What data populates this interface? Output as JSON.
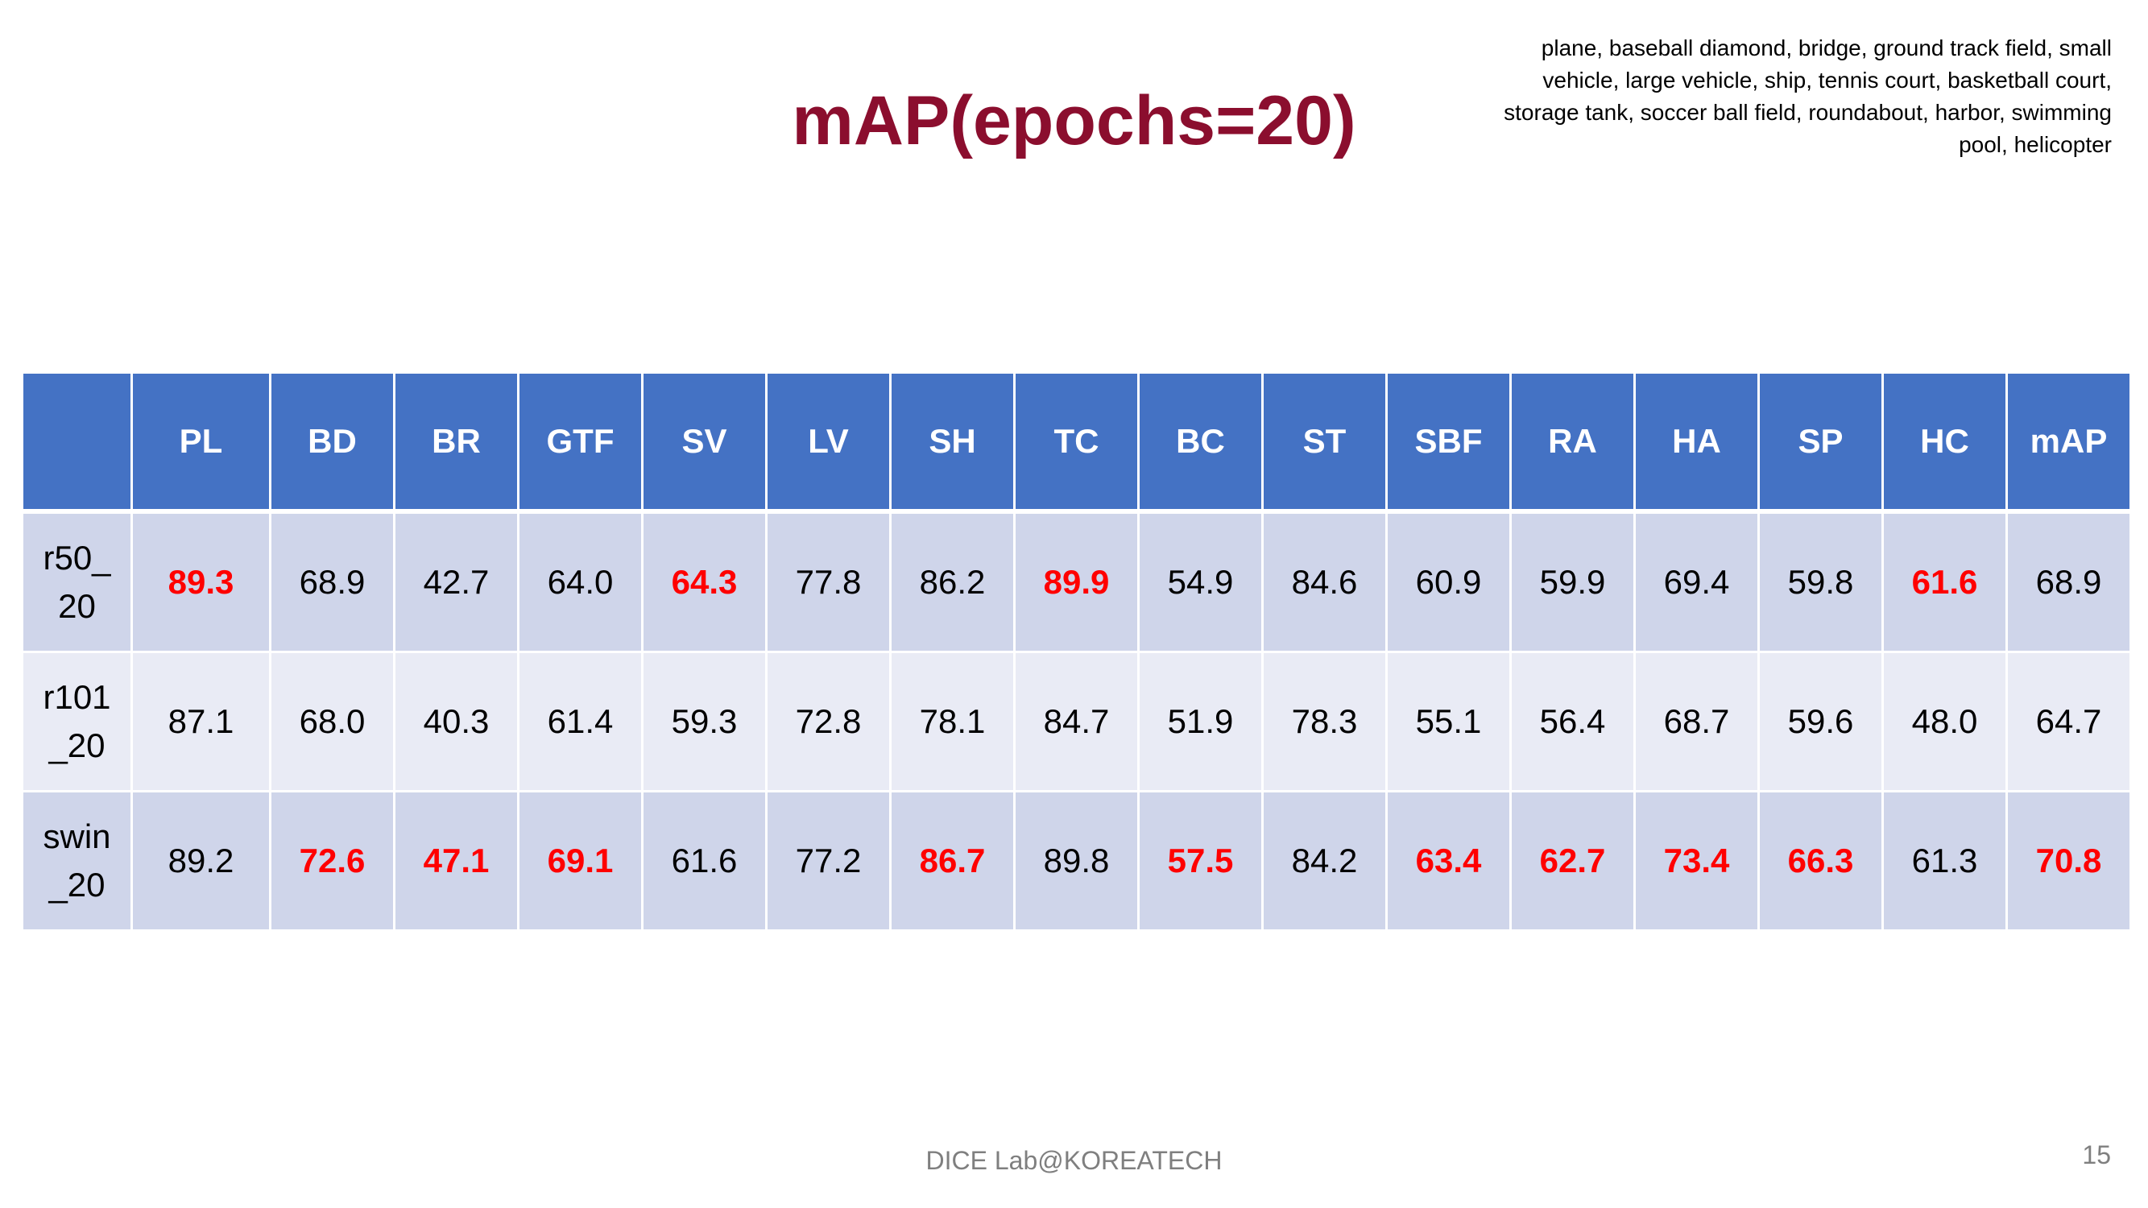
{
  "slide": {
    "title": "mAP(epochs=20)",
    "class_note": "plane, baseball diamond, bridge, ground track field, small vehicle, large vehicle, ship, tennis court, basketball court, storage tank, soccer ball field, roundabout, harbor, swimming pool, helicopter",
    "footer": "DICE  Lab@KOREATECH",
    "page_number": "15"
  },
  "colors": {
    "title": "#8b0e2e",
    "header_bg": "#4472c4",
    "row_dark": "#cfd5ea",
    "row_light": "#e9ebf5",
    "best_value": "#ff0000"
  },
  "table": {
    "headers": [
      "",
      "PL",
      "BD",
      "BR",
      "GTF",
      "SV",
      "LV",
      "SH",
      "TC",
      "BC",
      "ST",
      "SBF",
      "RA",
      "HA",
      "SP",
      "HC",
      "mAP"
    ],
    "rows": [
      {
        "label": "r50_\n20",
        "values": [
          "89.3",
          "68.9",
          "42.7",
          "64.0",
          "64.3",
          "77.8",
          "86.2",
          "89.9",
          "54.9",
          "84.6",
          "60.9",
          "59.9",
          "69.4",
          "59.8",
          "61.6",
          "68.9"
        ],
        "best": [
          true,
          false,
          false,
          false,
          true,
          false,
          false,
          true,
          false,
          false,
          false,
          false,
          false,
          false,
          true,
          false
        ]
      },
      {
        "label": "r101\n_20",
        "values": [
          "87.1",
          "68.0",
          "40.3",
          "61.4",
          "59.3",
          "72.8",
          "78.1",
          "84.7",
          "51.9",
          "78.3",
          "55.1",
          "56.4",
          "68.7",
          "59.6",
          "48.0",
          "64.7"
        ],
        "best": [
          false,
          false,
          false,
          false,
          false,
          false,
          false,
          false,
          false,
          false,
          false,
          false,
          false,
          false,
          false,
          false
        ]
      },
      {
        "label": "swin\n_20",
        "values": [
          "89.2",
          "72.6",
          "47.1",
          "69.1",
          "61.6",
          "77.2",
          "86.7",
          "89.8",
          "57.5",
          "84.2",
          "63.4",
          "62.7",
          "73.4",
          "66.3",
          "61.3",
          "70.8"
        ],
        "best": [
          false,
          true,
          true,
          true,
          false,
          false,
          true,
          false,
          true,
          false,
          true,
          true,
          true,
          true,
          false,
          true
        ]
      }
    ]
  }
}
